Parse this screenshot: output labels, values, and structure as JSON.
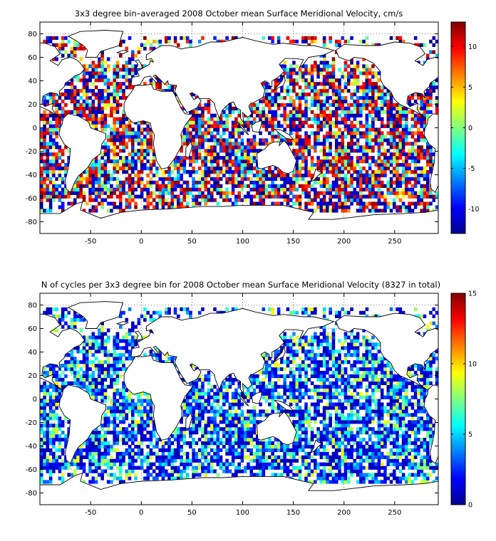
{
  "chart_data": [
    {
      "type": "heatmap",
      "title": "3x3 degree bin–averaged 2008 October mean Surface Meridional Velocity, cm/s",
      "xlabel": "",
      "ylabel": "",
      "xlim": [
        -100,
        293
      ],
      "ylim": [
        -90,
        90
      ],
      "xticks": [
        "-50",
        "0",
        "50",
        "100",
        "150",
        "200",
        "250"
      ],
      "yticks": [
        "80",
        "60",
        "40",
        "20",
        "0",
        "-20",
        "-40",
        "-60",
        "-80"
      ],
      "grid": true,
      "bin_size_deg": 3,
      "colorbar": {
        "min": -13,
        "max": 13,
        "ticks": [
          "10",
          "5",
          "0",
          "-5",
          "-10"
        ],
        "colormap": "jet"
      }
    },
    {
      "type": "heatmap",
      "title": "N of cycles per 3x3 degree bin for 2008 October mean Surface Meridional Velocity (8327 in total)",
      "xlabel": "",
      "ylabel": "",
      "xlim": [
        -100,
        293
      ],
      "ylim": [
        -90,
        90
      ],
      "xticks": [
        "-50",
        "0",
        "50",
        "100",
        "150",
        "200",
        "250"
      ],
      "yticks": [
        "80",
        "60",
        "40",
        "20",
        "0",
        "-20",
        "-40",
        "-60",
        "-80"
      ],
      "grid": true,
      "bin_size_deg": 3,
      "colorbar": {
        "min": 0,
        "max": 15,
        "ticks": [
          "15",
          "10",
          "5",
          "0"
        ],
        "colormap": "jet"
      }
    }
  ]
}
